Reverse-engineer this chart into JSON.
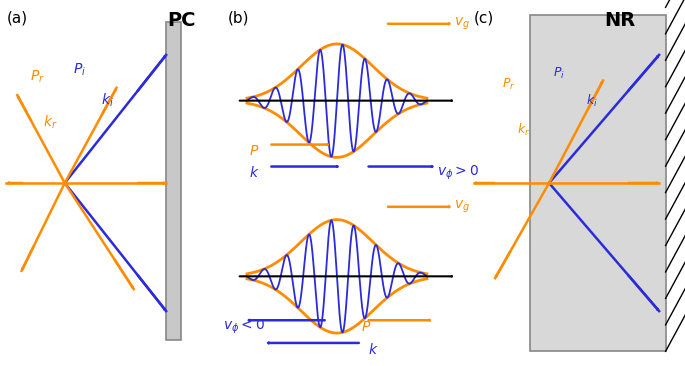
{
  "orange": "#FF8C00",
  "blue": "#2B2BDD",
  "black": "#000000",
  "gray_fill": "#C8C8C8",
  "gray_edge": "#888888",
  "nr_fill": "#D8D8D8",
  "bg": "#FFFFFF",
  "panel_a_label": "(a)",
  "panel_b_label": "(b)",
  "panel_c_label": "(c)",
  "PC_label": "PC",
  "NR_label": "NR"
}
